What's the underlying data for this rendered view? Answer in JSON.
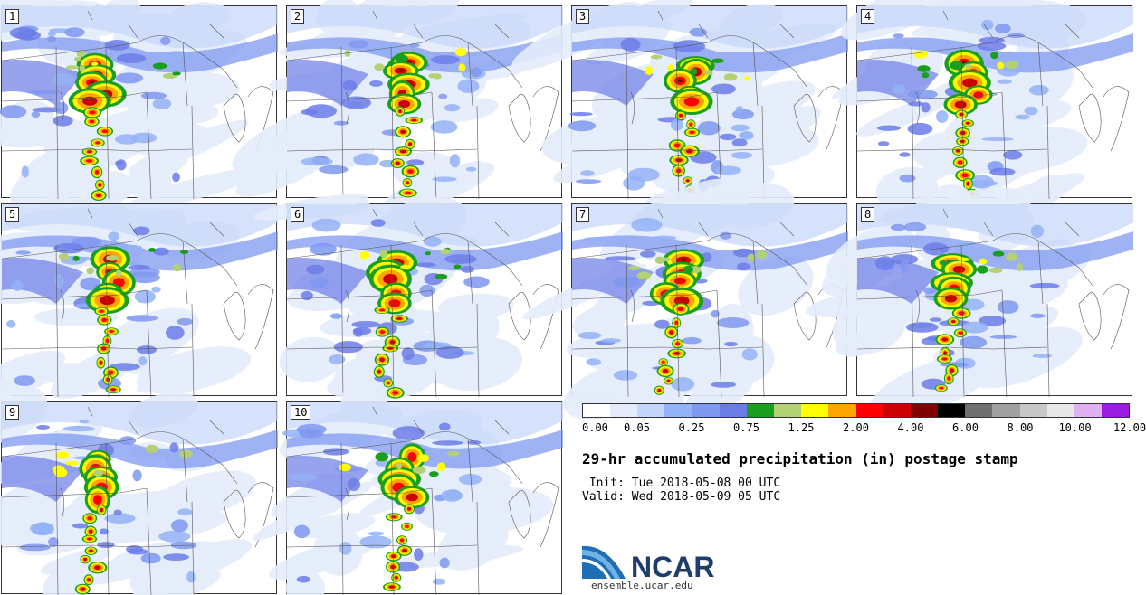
{
  "panels": [
    {
      "label": "1"
    },
    {
      "label": "2"
    },
    {
      "label": "3"
    },
    {
      "label": "4"
    },
    {
      "label": "5"
    },
    {
      "label": "6"
    },
    {
      "label": "7"
    },
    {
      "label": "8"
    },
    {
      "label": "9"
    },
    {
      "label": "10"
    }
  ],
  "colorbar": {
    "colors": [
      "#ffffff",
      "#e4ecfb",
      "#c4d6fa",
      "#93b2f7",
      "#7f98f0",
      "#6c7ce7",
      "#199e1d",
      "#b3d174",
      "#ffff00",
      "#ffa500",
      "#ff0000",
      "#cc0000",
      "#800000",
      "#000000",
      "#707070",
      "#a0a0a0",
      "#c8c8c8",
      "#e8e8e8",
      "#e0b0f0",
      "#9b1be0"
    ],
    "labels": [
      "0.00",
      "0.05",
      "0.25",
      "0.75",
      "1.25",
      "2.00",
      "4.00",
      "6.00",
      "8.00",
      "10.00",
      "12.00"
    ]
  },
  "title": "29-hr accumulated precipitation (in) postage stamp",
  "init": " Init: Tue 2018-05-08 00 UTC",
  "valid": "Valid: Wed 2018-05-09 05 UTC",
  "logo_text": "NCAR",
  "url": "ensemble.ucar.edu"
}
